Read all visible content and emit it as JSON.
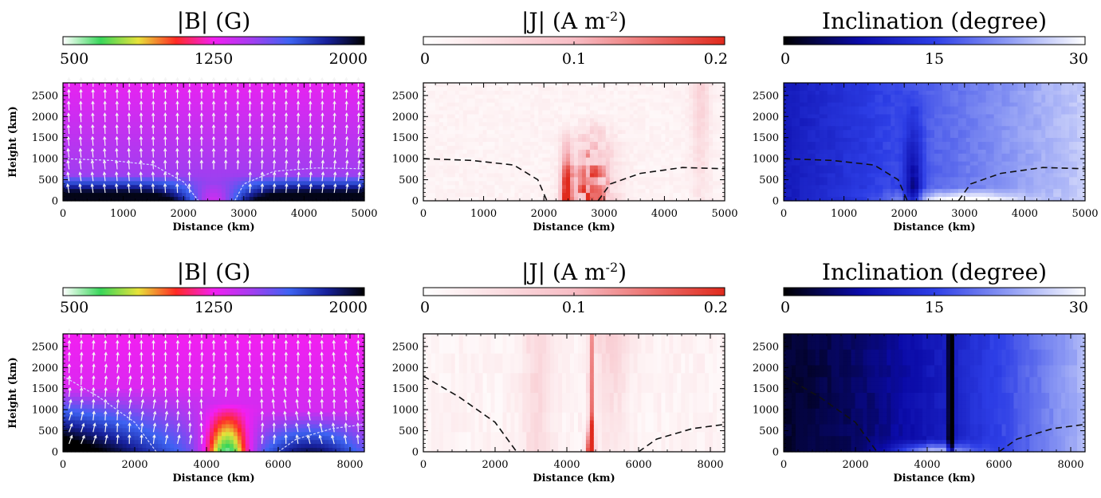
{
  "chart_data": [
    {
      "type": "heatmap",
      "row": 1,
      "quantity": "B",
      "title": "|B| (G)",
      "colorbar_ticks": [
        "500",
        "1250",
        "2000"
      ],
      "colorbar_range": [
        500,
        2000
      ],
      "colormap": [
        "#ffffff",
        "#39d65a",
        "#e7e23a",
        "#ff2a24",
        "#f21ff1",
        "#a43df0",
        "#3e63f2",
        "#17209a",
        "#000000"
      ],
      "xlabel": "Distance (km)",
      "ylabel": "Height (km)",
      "xlim": [
        0,
        5000
      ],
      "ylim": [
        0,
        2800
      ],
      "xticks": [
        "0",
        "1000",
        "2000",
        "3000",
        "4000",
        "5000"
      ],
      "yticks": [
        "0",
        "500",
        "1000",
        "1500",
        "2000",
        "2500"
      ],
      "field_vectors": true,
      "tau_contour": {
        "left": [
          [
            0,
            1000
          ],
          [
            800,
            960
          ],
          [
            1500,
            850
          ],
          [
            2000,
            450
          ],
          [
            2250,
            0
          ]
        ],
        "right": [
          [
            2850,
            0
          ],
          [
            3000,
            400
          ],
          [
            3500,
            700
          ],
          [
            4200,
            780
          ],
          [
            5000,
            760
          ]
        ]
      }
    },
    {
      "type": "heatmap",
      "row": 1,
      "quantity": "J",
      "title": "|J| (A m",
      "title_sup": "-2",
      "title_end": ")",
      "colorbar_ticks": [
        "0",
        "0.1",
        "0.2"
      ],
      "colorbar_range": [
        0,
        0.2
      ],
      "colormap": [
        "#ffffff",
        "#f7bcc4",
        "#e02a1d"
      ],
      "xlabel": "Distance (km)",
      "ylabel": "",
      "xlim": [
        0,
        5000
      ],
      "ylim": [
        0,
        2800
      ],
      "xticks": [
        "0",
        "1000",
        "2000",
        "3000",
        "4000",
        "5000"
      ],
      "yticks": [
        "0",
        "500",
        "1000",
        "1500",
        "2000",
        "2500"
      ],
      "tau_contour": {
        "left": [
          [
            0,
            1000
          ],
          [
            800,
            960
          ],
          [
            1500,
            850
          ],
          [
            1900,
            500
          ],
          [
            2050,
            0
          ]
        ],
        "right": [
          [
            2900,
            0
          ],
          [
            3100,
            400
          ],
          [
            3600,
            650
          ],
          [
            4300,
            790
          ],
          [
            5000,
            760
          ]
        ]
      }
    },
    {
      "type": "heatmap",
      "row": 1,
      "quantity": "I",
      "title": "Inclination (degree)",
      "colorbar_ticks": [
        "0",
        "15",
        "30"
      ],
      "colorbar_range": [
        0,
        30
      ],
      "colormap": [
        "#000000",
        "#0b0ba8",
        "#2d3ee6",
        "#8f9cf4",
        "#ffffff"
      ],
      "xlabel": "Distance (km)",
      "ylabel": "",
      "xlim": [
        0,
        5000
      ],
      "ylim": [
        0,
        2800
      ],
      "xticks": [
        "0",
        "1000",
        "2000",
        "3000",
        "4000",
        "5000"
      ],
      "yticks": [
        "0",
        "500",
        "1000",
        "1500",
        "2000",
        "2500"
      ],
      "tau_contour": {
        "left": [
          [
            0,
            1000
          ],
          [
            800,
            960
          ],
          [
            1500,
            850
          ],
          [
            1900,
            500
          ],
          [
            2050,
            0
          ]
        ],
        "right": [
          [
            2900,
            0
          ],
          [
            3100,
            400
          ],
          [
            3600,
            650
          ],
          [
            4300,
            790
          ],
          [
            5000,
            760
          ]
        ]
      }
    },
    {
      "type": "heatmap",
      "row": 2,
      "quantity": "B",
      "title": "|B| (G)",
      "colorbar_ticks": [
        "500",
        "1250",
        "2000"
      ],
      "colorbar_range": [
        500,
        2000
      ],
      "colormap": [
        "#ffffff",
        "#39d65a",
        "#e7e23a",
        "#ff2a24",
        "#f21ff1",
        "#a43df0",
        "#3e63f2",
        "#17209a",
        "#000000"
      ],
      "xlabel": "Distance (km)",
      "ylabel": "Height (km)",
      "xlim": [
        0,
        8400
      ],
      "ylim": [
        0,
        2800
      ],
      "xticks": [
        "0",
        "2000",
        "4000",
        "6000",
        "8000"
      ],
      "yticks": [
        "0",
        "500",
        "1000",
        "1500",
        "2000",
        "2500"
      ],
      "field_vectors": true,
      "tau_contour": {
        "left": [
          [
            0,
            1800
          ],
          [
            1000,
            1300
          ],
          [
            2000,
            700
          ],
          [
            2600,
            0
          ]
        ],
        "right": [
          [
            6000,
            0
          ],
          [
            6500,
            300
          ],
          [
            7500,
            550
          ],
          [
            8400,
            650
          ]
        ]
      }
    },
    {
      "type": "heatmap",
      "row": 2,
      "quantity": "J",
      "title": "|J| (A m",
      "title_sup": "-2",
      "title_end": ")",
      "colorbar_ticks": [
        "0",
        "0.1",
        "0.2"
      ],
      "colorbar_range": [
        0,
        0.2
      ],
      "colormap": [
        "#ffffff",
        "#f7bcc4",
        "#e02a1d"
      ],
      "xlabel": "Distance (km)",
      "ylabel": "",
      "xlim": [
        0,
        8400
      ],
      "ylim": [
        0,
        2800
      ],
      "xticks": [
        "0",
        "2000",
        "4000",
        "6000",
        "8000"
      ],
      "yticks": [
        "0",
        "500",
        "1000",
        "1500",
        "2000",
        "2500"
      ],
      "tau_contour": {
        "left": [
          [
            0,
            1800
          ],
          [
            1000,
            1300
          ],
          [
            2000,
            700
          ],
          [
            2600,
            0
          ]
        ],
        "right": [
          [
            6000,
            0
          ],
          [
            6500,
            300
          ],
          [
            7500,
            550
          ],
          [
            8400,
            650
          ]
        ]
      }
    },
    {
      "type": "heatmap",
      "row": 2,
      "quantity": "I",
      "title": "Inclination (degree)",
      "colorbar_ticks": [
        "0",
        "15",
        "30"
      ],
      "colorbar_range": [
        0,
        30
      ],
      "colormap": [
        "#000000",
        "#0b0ba8",
        "#2d3ee6",
        "#8f9cf4",
        "#ffffff"
      ],
      "xlabel": "Distance (km)",
      "ylabel": "",
      "xlim": [
        0,
        8400
      ],
      "ylim": [
        0,
        2800
      ],
      "xticks": [
        "0",
        "2000",
        "4000",
        "6000",
        "8000"
      ],
      "yticks": [
        "0",
        "500",
        "1000",
        "1500",
        "2000",
        "2500"
      ],
      "tau_contour": {
        "left": [
          [
            0,
            1800
          ],
          [
            1000,
            1300
          ],
          [
            2000,
            700
          ],
          [
            2600,
            0
          ]
        ],
        "right": [
          [
            6000,
            0
          ],
          [
            6500,
            300
          ],
          [
            7500,
            550
          ],
          [
            8400,
            650
          ]
        ]
      }
    }
  ]
}
